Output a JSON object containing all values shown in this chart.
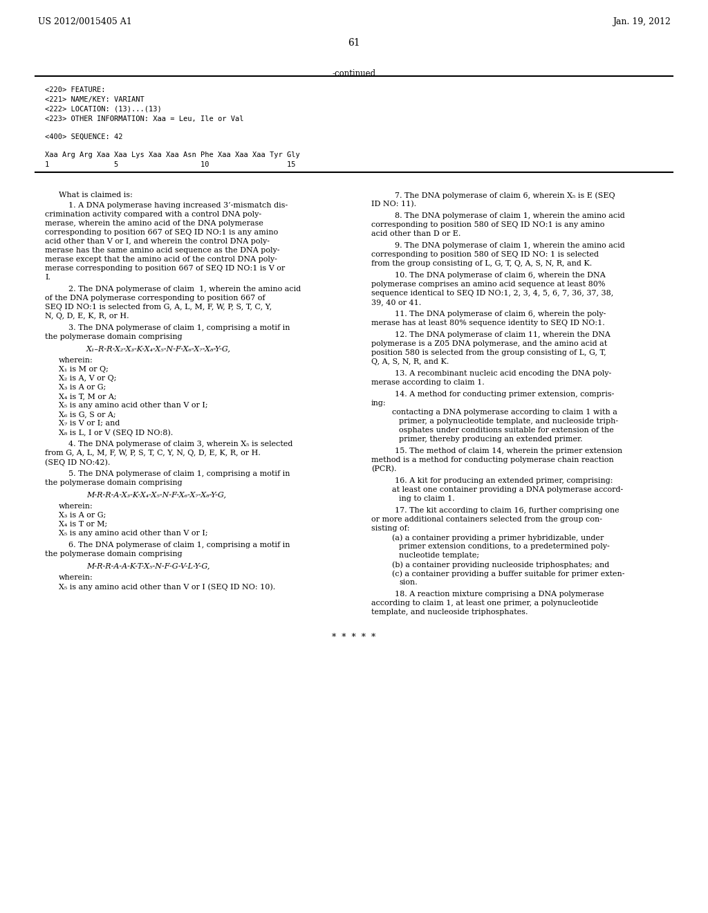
{
  "background_color": "#ffffff",
  "header_left": "US 2012/0015405 A1",
  "header_right": "Jan. 19, 2012",
  "page_number": "61",
  "continued_label": "-continued",
  "sequence_block": [
    "<220> FEATURE:",
    "<221> NAME/KEY: VARIANT",
    "<222> LOCATION: (13)...(13)",
    "<223> OTHER INFORMATION: Xaa = Leu, Ile or Val",
    "",
    "<400> SEQUENCE: 42",
    "",
    "Xaa Arg Arg Xaa Xaa Lys Xaa Xaa Asn Phe Xaa Xaa Xaa Tyr Gly",
    "1               5                   10                  15"
  ],
  "left_column": [
    {
      "type": "header",
      "text": "What is claimed is:"
    },
    {
      "type": "claim",
      "number": "1",
      "text": "A DNA polymerase having increased 3’-mismatch dis-crimination activity compared with a control DNA poly-merase, wherein the amino acid of the DNA polymerase corresponding to position 667 of SEQ ID NO:1 is any amino acid other than V or I, and wherein the control DNA poly-merase has the same amino acid sequence as the DNA poly-merase except that the amino acid of the control DNA poly-merase corresponding to position 667 of SEQ ID NO:1 is V or I."
    },
    {
      "type": "claim",
      "number": "2",
      "text": "The DNA polymerase of claim 1, wherein the amino acid of the DNA polymerase corresponding to position 667 of SEQ ID NO:1 is selected from G, A, L, M, F, W, P, S, T, C, Y, N, Q, D, E, K, R, or H."
    },
    {
      "type": "claim",
      "number": "3",
      "text": "The DNA polymerase of claim 1, comprising a motif in the polymerase domain comprising"
    },
    {
      "type": "formula",
      "text": "X₁–R-R-X₂-X₃-K-X₄-X₅-N-F-X₆-X₇-X₈-Y-G,"
    },
    {
      "type": "wherein_header",
      "text": "wherein:"
    },
    {
      "type": "wherein_item",
      "text": "X₁ is M or Q;"
    },
    {
      "type": "wherein_item",
      "text": "X₂ is A, V or Q;"
    },
    {
      "type": "wherein_item",
      "text": "X₃ is A or G;"
    },
    {
      "type": "wherein_item",
      "text": "X₄ is T, M or A;"
    },
    {
      "type": "wherein_item",
      "text": "X₅ is any amino acid other than V or I;"
    },
    {
      "type": "wherein_item",
      "text": "X₆ is G, S or A;"
    },
    {
      "type": "wherein_item",
      "text": "X₇ is V or I; and"
    },
    {
      "type": "wherein_item",
      "text": "X₈ is L, I or V (SEQ ID NO:8)."
    },
    {
      "type": "claim",
      "number": "4",
      "text": "The DNA polymerase of claim 3, wherein X₅ is selected from G, A, L, M, F, W, P, S, T, C, Y, N, Q, D, E, K, R, or H. (SEQ ID NO:42)."
    },
    {
      "type": "claim",
      "number": "5",
      "text": "The DNA polymerase of claim 1, comprising a motif in the polymerase domain comprising"
    },
    {
      "type": "formula",
      "text": "M-R-R-A-X₃-K-X₄-X₅-N-F-X₆-X₇-X₈-Y-G,"
    },
    {
      "type": "wherein_header",
      "text": "wherein:"
    },
    {
      "type": "wherein_item",
      "text": "X₃ is A or G;"
    },
    {
      "type": "wherein_item",
      "text": "X₄ is T or M;"
    },
    {
      "type": "wherein_item",
      "text": "X₅ is any amino acid other than V or I;"
    }
  ],
  "right_column": [
    {
      "type": "claim",
      "number": "6",
      "text": "The DNA polymerase of claim 1, comprising a motif in the polymerase domain comprising"
    },
    {
      "type": "formula_right",
      "text": "M-R-R-A-A-K-T-X₅-N-F-G-V-L-Y-G,"
    },
    {
      "type": "wherein_header",
      "text": "wherein:"
    },
    {
      "type": "wherein_item_right",
      "text": "X₅ is any amino acid other than V or I (SEQ ID NO: 10)."
    },
    {
      "type": "claim_right",
      "number": "7",
      "text": "The DNA polymerase of claim 6, wherein X₅ is E (SEQ ID NO: 11)."
    },
    {
      "type": "claim_right",
      "number": "8",
      "text": "The DNA polymerase of claim 1, wherein the amino acid corresponding to position 580 of SEQ ID NO:1 is any amino acid other than D or E."
    },
    {
      "type": "claim_right",
      "number": "9",
      "text": "The DNA polymerase of claim 1, wherein the amino acid corresponding to position 580 of SEQ ID NO: 1 is selected from the group consisting of L, G, T, Q, A, S, N, R, and K."
    },
    {
      "type": "claim_right",
      "number": "10",
      "text": "The DNA polymerase of claim 6, wherein the DNA polymerase comprises an amino acid sequence at least 80% sequence identical to SEQ ID NO:1, 2, 3, 4, 5, 6, 7, 36, 37, 38, 39, 40 or 41."
    },
    {
      "type": "claim_right",
      "number": "11",
      "text": "The DNA polymerase of claim 6, wherein the poly-merase has at least 80% sequence identity to SEQ ID NO:1."
    },
    {
      "type": "claim_right",
      "number": "12",
      "text": "The DNA polymerase of claim 11, wherein the DNA polymerase is a Z05 DNA polymerase, and the amino acid at position 580 is selected from the group consisting of L, G, T, Q, A, S, N, R, and K."
    },
    {
      "type": "claim_right",
      "number": "13",
      "text": "A recombinant nucleic acid encoding the DNA poly-merase according to claim 1."
    },
    {
      "type": "claim_right",
      "number": "14",
      "text": "A method for conducting primer extension, compris-ing:"
    },
    {
      "type": "subitem_right",
      "text": "contacting a DNA polymerase according to claim 1 with a primer, a polynucleotide template, and nucleoside triph-osphates under conditions suitable for extension of the primer, thereby producing an extended primer."
    },
    {
      "type": "claim_right",
      "number": "15",
      "text": "The method of claim 14, wherein the primer extension method is a method for conducting polymerase chain reaction (PCR)."
    },
    {
      "type": "claim_right",
      "number": "16",
      "text": "A kit for producing an extended primer, comprising:"
    },
    {
      "type": "subitem_right",
      "text": "at least one container providing a DNA polymerase accord-ing to claim 1."
    },
    {
      "type": "claim_right",
      "number": "17",
      "text": "The kit according to claim 16, further comprising one or more additional containers selected from the group con-sisting of:"
    },
    {
      "type": "subitem_right_a",
      "text": "(a) a container providing a primer hybridizable, under primer extension conditions, to a predetermined poly-nucleotide template;"
    },
    {
      "type": "subitem_right_b",
      "text": "(b) a container providing nucleoside triphosphates; and"
    },
    {
      "type": "subitem_right_c",
      "text": "(c) a container providing a buffer suitable for primer exten-sion."
    },
    {
      "type": "claim_right",
      "number": "18",
      "text": "A reaction mixture comprising a DNA polymerase according to claim 1, at least one primer, a polynucleotide template, and nucleoside triphosphates."
    },
    {
      "type": "asterisks",
      "text": "*  *  *  *  *"
    }
  ]
}
